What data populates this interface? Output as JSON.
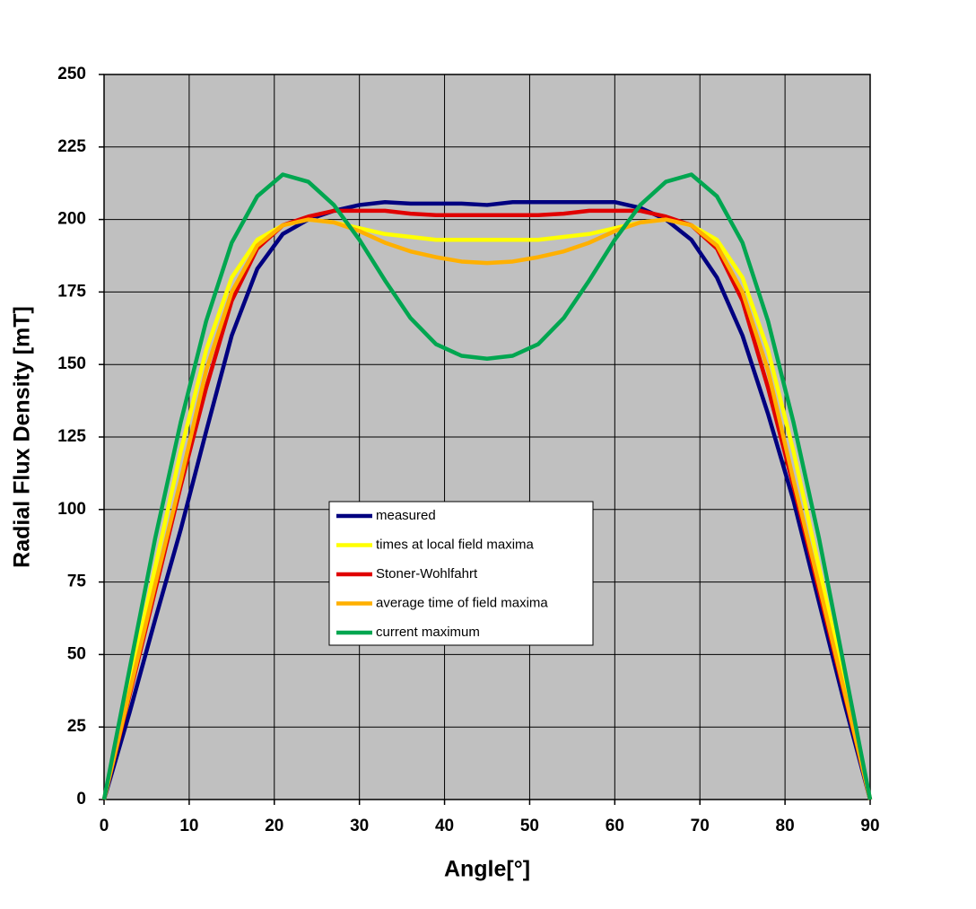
{
  "chart_data": {
    "type": "line",
    "x_label": "Angle[°]",
    "y_label": "Radial Flux Density [mT]",
    "x": [
      0,
      3,
      6,
      9,
      12,
      15,
      18,
      21,
      24,
      27,
      30,
      33,
      36,
      39,
      42,
      45,
      48,
      51,
      54,
      57,
      60,
      63,
      66,
      69,
      72,
      75,
      78,
      81,
      84,
      87,
      90
    ],
    "series": [
      {
        "name": "measured",
        "color": "#000080",
        "values": [
          0,
          30,
          62,
          93,
          127,
          160,
          183,
          195,
          200,
          203,
          205,
          206,
          205.5,
          205.5,
          205.5,
          205,
          206,
          206,
          206,
          206,
          206,
          204,
          200,
          193,
          180,
          160,
          133,
          103,
          68,
          33,
          0
        ]
      },
      {
        "name": "times at local field maxima",
        "color": "#ffff00",
        "values": [
          0,
          40,
          80,
          120,
          155,
          180,
          193,
          198,
          200,
          199,
          197,
          195,
          194,
          193,
          193,
          193,
          193,
          193,
          194,
          195,
          197,
          199,
          200,
          198,
          193,
          180,
          155,
          120,
          80,
          40,
          0
        ]
      },
      {
        "name": "Stoner-Wohlfahrt",
        "color": "#e00000",
        "values": [
          0,
          36,
          72,
          108,
          142,
          172,
          190,
          198,
          201,
          203,
          203,
          203,
          202,
          201.5,
          201.5,
          201.5,
          201.5,
          201.5,
          202,
          203,
          203,
          203,
          201,
          198,
          190,
          172,
          142,
          108,
          72,
          36,
          0
        ]
      },
      {
        "name": "average time of field maxima",
        "color": "#ffb000",
        "values": [
          0,
          37,
          74,
          110,
          148,
          175,
          191,
          198,
          200,
          199,
          196,
          192,
          189,
          187,
          185.5,
          185,
          185.5,
          187,
          189,
          192,
          196,
          199,
          200,
          198,
          191,
          175,
          148,
          110,
          74,
          37,
          0
        ]
      },
      {
        "name": "current maximum",
        "color": "#00a650",
        "values": [
          0,
          45,
          90,
          130,
          165,
          192,
          208,
          215.5,
          213,
          205,
          193,
          179,
          166,
          157,
          153,
          152,
          153,
          157,
          166,
          179,
          193,
          205,
          213,
          215.5,
          208,
          192,
          165,
          130,
          90,
          45,
          0
        ]
      }
    ],
    "xlim": [
      0,
      90
    ],
    "xticks": [
      0,
      10,
      20,
      30,
      40,
      50,
      60,
      70,
      80,
      90
    ],
    "ylim": [
      0,
      250
    ],
    "yticks": [
      0,
      25,
      50,
      75,
      100,
      125,
      150,
      175,
      200,
      225,
      250
    ],
    "grid": true
  }
}
